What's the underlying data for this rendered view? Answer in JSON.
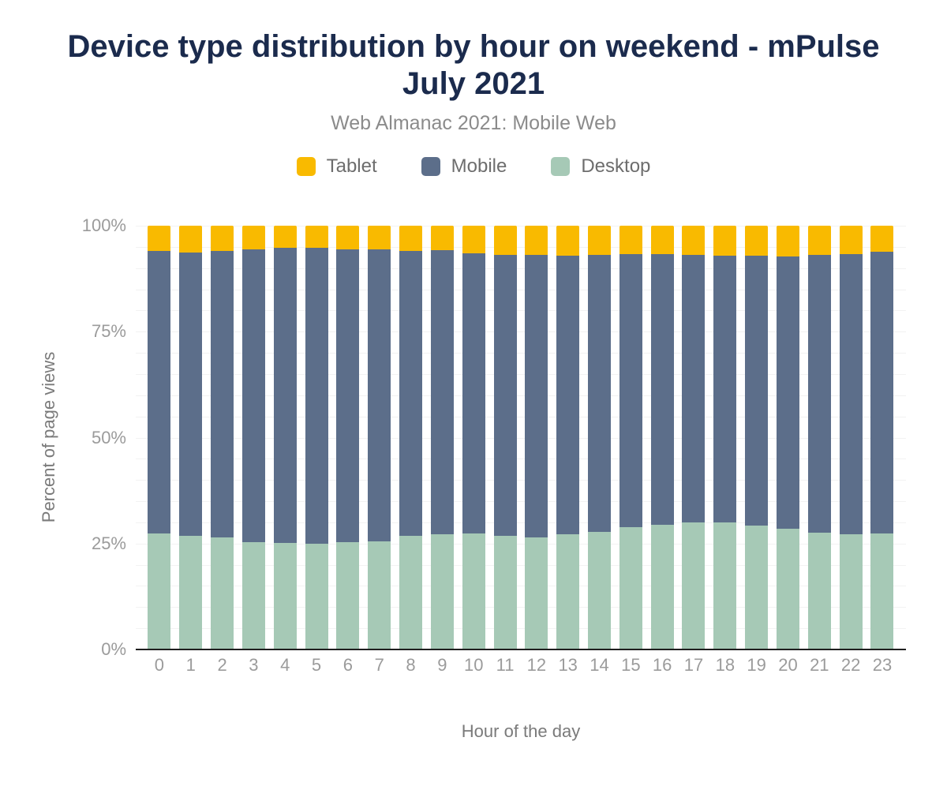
{
  "title": "Device type distribution by hour on weekend - mPulse July 2021",
  "subtitle": "Web Almanac 2021: Mobile Web",
  "legend": {
    "items": [
      {
        "label": "Tablet",
        "color": "#f9ba00"
      },
      {
        "label": "Mobile",
        "color": "#5c6e8a"
      },
      {
        "label": "Desktop",
        "color": "#a6c9b6"
      }
    ]
  },
  "colors": {
    "title": "#1b2b4d",
    "subtitle": "#8b8b8b",
    "tick_labels": "#9b9b9b",
    "axis_titles": "#7a7a7a",
    "axis_line": "#1f1f1f",
    "gridline": "#f2f2f2"
  },
  "chart_data": {
    "type": "bar",
    "stacked": true,
    "title": "Device type distribution by hour on weekend - mPulse July 2021",
    "subtitle": "Web Almanac 2021: Mobile Web",
    "xlabel": "Hour of the day",
    "ylabel": "Percent of page views",
    "ylim": [
      0,
      100
    ],
    "grid_step": 5,
    "legend_position": "top",
    "categories": [
      "0",
      "1",
      "2",
      "3",
      "4",
      "5",
      "6",
      "7",
      "8",
      "9",
      "10",
      "11",
      "12",
      "13",
      "14",
      "15",
      "16",
      "17",
      "18",
      "19",
      "20",
      "21",
      "22",
      "23"
    ],
    "yticks": [
      {
        "label": "0%",
        "value": 0
      },
      {
        "label": "25%",
        "value": 25
      },
      {
        "label": "50%",
        "value": 50
      },
      {
        "label": "75%",
        "value": 75
      },
      {
        "label": "100%",
        "value": 100
      }
    ],
    "series": [
      {
        "name": "Tablet",
        "color": "#f9ba00",
        "values": [
          5.9,
          6.3,
          6.0,
          5.5,
          5.3,
          5.2,
          5.5,
          5.6,
          6.0,
          5.8,
          6.5,
          6.8,
          6.8,
          7.0,
          6.8,
          6.7,
          6.7,
          6.8,
          7.0,
          7.1,
          7.3,
          6.9,
          6.7,
          6.2
        ]
      },
      {
        "name": "Mobile",
        "color": "#5c6e8a",
        "values": [
          66.7,
          66.9,
          67.6,
          69.1,
          69.5,
          69.9,
          69.1,
          68.8,
          67.2,
          67.0,
          66.2,
          66.3,
          66.8,
          65.9,
          65.4,
          64.4,
          63.8,
          63.3,
          63.0,
          63.7,
          64.2,
          65.6,
          66.1,
          66.4
        ]
      },
      {
        "name": "Desktop",
        "color": "#a6c9b6",
        "values": [
          27.4,
          26.8,
          26.4,
          25.4,
          25.2,
          24.9,
          25.4,
          25.6,
          26.8,
          27.2,
          27.3,
          26.9,
          26.4,
          27.1,
          27.8,
          28.9,
          29.5,
          29.9,
          30.0,
          29.2,
          28.5,
          27.5,
          27.2,
          27.4
        ]
      }
    ]
  }
}
